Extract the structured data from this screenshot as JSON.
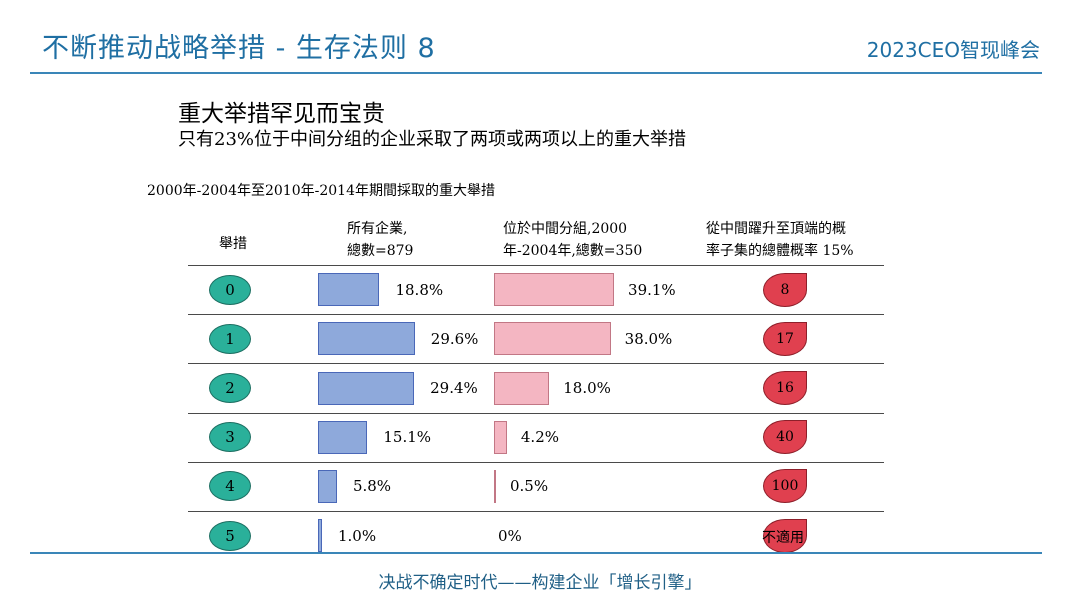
{
  "header": {
    "title": "不断推动战略举措 - 生存法则 8",
    "brand": "2023CEO智现峰会"
  },
  "heading": "重大举措罕见而宝贵",
  "subheading": "只有23%位于中间分组的企业采取了两项或两项以上的重大举措",
  "footer": "决战不确定时代——构建企业「增长引擎」",
  "colors": {
    "blue_bar": "#8ea9db",
    "pink_bar": "#f4b6c2",
    "teal_circle": "#2ab09a",
    "red_drop": "#e0404f",
    "accent": "#1f6fa3"
  },
  "chart_data": {
    "type": "table",
    "title": "2000年-2004年至2010年-2014年期間採取的重大舉措",
    "columns": {
      "moves": "舉措",
      "all_line1": "所有企業,",
      "all_line2": "總數=879",
      "mid_line1": "位於中間分組,2000",
      "mid_line2": "年-2004年,總數=350",
      "prob_line1": "從中間躍升至頂端的概",
      "prob_line2": "率子集的總體概率 15%"
    },
    "rows": [
      {
        "moves": "0",
        "all_pct": 18.8,
        "all_label": "18.8%",
        "mid_pct": 39.1,
        "mid_label": "39.1%",
        "prob": "8"
      },
      {
        "moves": "1",
        "all_pct": 29.6,
        "all_label": "29.6%",
        "mid_pct": 38.0,
        "mid_label": "38.0%",
        "prob": "17"
      },
      {
        "moves": "2",
        "all_pct": 29.4,
        "all_label": "29.4%",
        "mid_pct": 18.0,
        "mid_label": "18.0%",
        "prob": "16"
      },
      {
        "moves": "3",
        "all_pct": 15.1,
        "all_label": "15.1%",
        "mid_pct": 4.2,
        "mid_label": "4.2%",
        "prob": "40"
      },
      {
        "moves": "4",
        "all_pct": 5.8,
        "all_label": "5.8%",
        "mid_pct": 0.5,
        "mid_label": "0.5%",
        "prob": "100"
      },
      {
        "moves": "5",
        "all_pct": 1.0,
        "all_label": "1.0%",
        "mid_pct": 0,
        "mid_label": "0%",
        "prob": "不適用"
      }
    ]
  }
}
